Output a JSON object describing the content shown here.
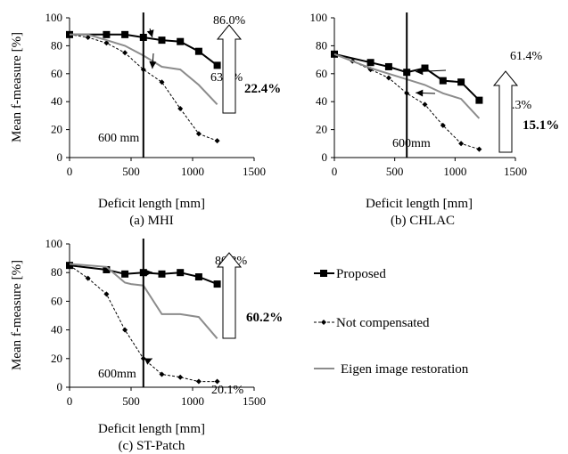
{
  "chart_data": [
    {
      "type": "line",
      "caption": "(a) MHI",
      "xlabel": "Deficit length [mm]",
      "ylabel": "Mean f-measure   [%]",
      "xlim": [
        0,
        1500
      ],
      "ylim": [
        0,
        100
      ],
      "xticks": [
        "0",
        "500",
        "1000",
        "1500"
      ],
      "yticks": [
        "0",
        "20",
        "40",
        "60",
        "80",
        "100"
      ],
      "marker_line": {
        "x": 600,
        "label": "600 mm"
      },
      "annotations": [
        {
          "text": "86.0%",
          "point": {
            "x": 600,
            "y": 86.0
          }
        },
        {
          "text": "63.6%",
          "point": {
            "x": 600,
            "y": 63.6
          }
        }
      ],
      "gain": "22.4%",
      "series": [
        {
          "name": "Proposed",
          "x": [
            0,
            300,
            450,
            600,
            750,
            900,
            1050,
            1200
          ],
          "values": [
            88,
            88,
            88,
            86,
            84,
            83,
            76,
            66
          ]
        },
        {
          "name": "Not compensated",
          "x": [
            0,
            150,
            300,
            450,
            600,
            750,
            900,
            1050,
            1200
          ],
          "values": [
            88,
            86,
            82,
            75,
            63,
            54,
            35,
            17,
            12
          ]
        },
        {
          "name": "Eigen image restoration",
          "x": [
            0,
            150,
            300,
            450,
            600,
            750,
            900,
            1050,
            1200
          ],
          "values": [
            88,
            88,
            84,
            80,
            73,
            65,
            63,
            52,
            38
          ]
        }
      ]
    },
    {
      "type": "line",
      "caption": "(b) CHLAC",
      "xlabel": "Deficit length [mm]",
      "ylabel": "",
      "xlim": [
        0,
        1500
      ],
      "ylim": [
        0,
        100
      ],
      "xticks": [
        "0",
        "500",
        "1000",
        "1500"
      ],
      "yticks": [
        "0",
        "20",
        "40",
        "60",
        "80",
        "100"
      ],
      "marker_line": {
        "x": 600,
        "label": "600mm"
      },
      "annotations": [
        {
          "text": "61.4%",
          "point": {
            "x": 600,
            "y": 61.4
          }
        },
        {
          "text": "46.3%",
          "point": {
            "x": 600,
            "y": 46.3
          }
        }
      ],
      "gain": "15.1%",
      "series": [
        {
          "name": "Proposed",
          "x": [
            0,
            300,
            450,
            600,
            750,
            900,
            1050,
            1200
          ],
          "values": [
            74,
            68,
            65,
            61,
            64,
            55,
            54,
            41
          ]
        },
        {
          "name": "Not compensated",
          "x": [
            0,
            150,
            300,
            450,
            600,
            750,
            900,
            1050,
            1200
          ],
          "values": [
            74,
            69,
            63,
            57,
            46,
            38,
            23,
            10,
            6
          ]
        },
        {
          "name": "Eigen image restoration",
          "x": [
            0,
            150,
            300,
            450,
            600,
            750,
            900,
            1050,
            1200
          ],
          "values": [
            74,
            69,
            64,
            60,
            56,
            52,
            46,
            42,
            28
          ]
        }
      ]
    },
    {
      "type": "line",
      "caption": "(c) ST-Patch",
      "xlabel": "Deficit length [mm]",
      "ylabel": "Mean f-measure   [%]",
      "xlim": [
        0,
        1500
      ],
      "ylim": [
        0,
        100
      ],
      "xticks": [
        "0",
        "500",
        "1000",
        "1500"
      ],
      "yticks": [
        "0",
        "20",
        "40",
        "60",
        "80",
        "100"
      ],
      "marker_line": {
        "x": 600,
        "label": "600mm"
      },
      "annotations": [
        {
          "text": "80.3%",
          "point": {
            "x": 600,
            "y": 80.3
          }
        },
        {
          "text": "20.1%",
          "point": {
            "x": 600,
            "y": 20.1
          }
        }
      ],
      "gain": "60.2%",
      "series": [
        {
          "name": "Proposed",
          "x": [
            0,
            300,
            450,
            600,
            750,
            900,
            1050,
            1200
          ],
          "values": [
            85,
            82,
            79,
            80,
            79,
            80,
            77,
            72
          ]
        },
        {
          "name": "Not compensated",
          "x": [
            0,
            150,
            300,
            450,
            600,
            750,
            900,
            1050,
            1200
          ],
          "values": [
            85,
            76,
            65,
            40,
            20,
            9,
            7,
            4,
            4
          ]
        },
        {
          "name": "Eigen image restoration",
          "x": [
            0,
            150,
            300,
            450,
            500,
            600,
            750,
            900,
            1050,
            1200
          ],
          "values": [
            86,
            85,
            84,
            73,
            72,
            71,
            51,
            51,
            49,
            34
          ]
        }
      ]
    }
  ],
  "legend": {
    "items": [
      {
        "label": "Proposed",
        "style": "solid-square"
      },
      {
        "label": "Not compensated",
        "style": "dashed-diamond"
      },
      {
        "label": "Eigen image restoration",
        "style": "solid-gray"
      }
    ]
  },
  "colors": {
    "proposed": "#000000",
    "not_compensated": "#000000",
    "eigen": "#8c8c8c"
  }
}
